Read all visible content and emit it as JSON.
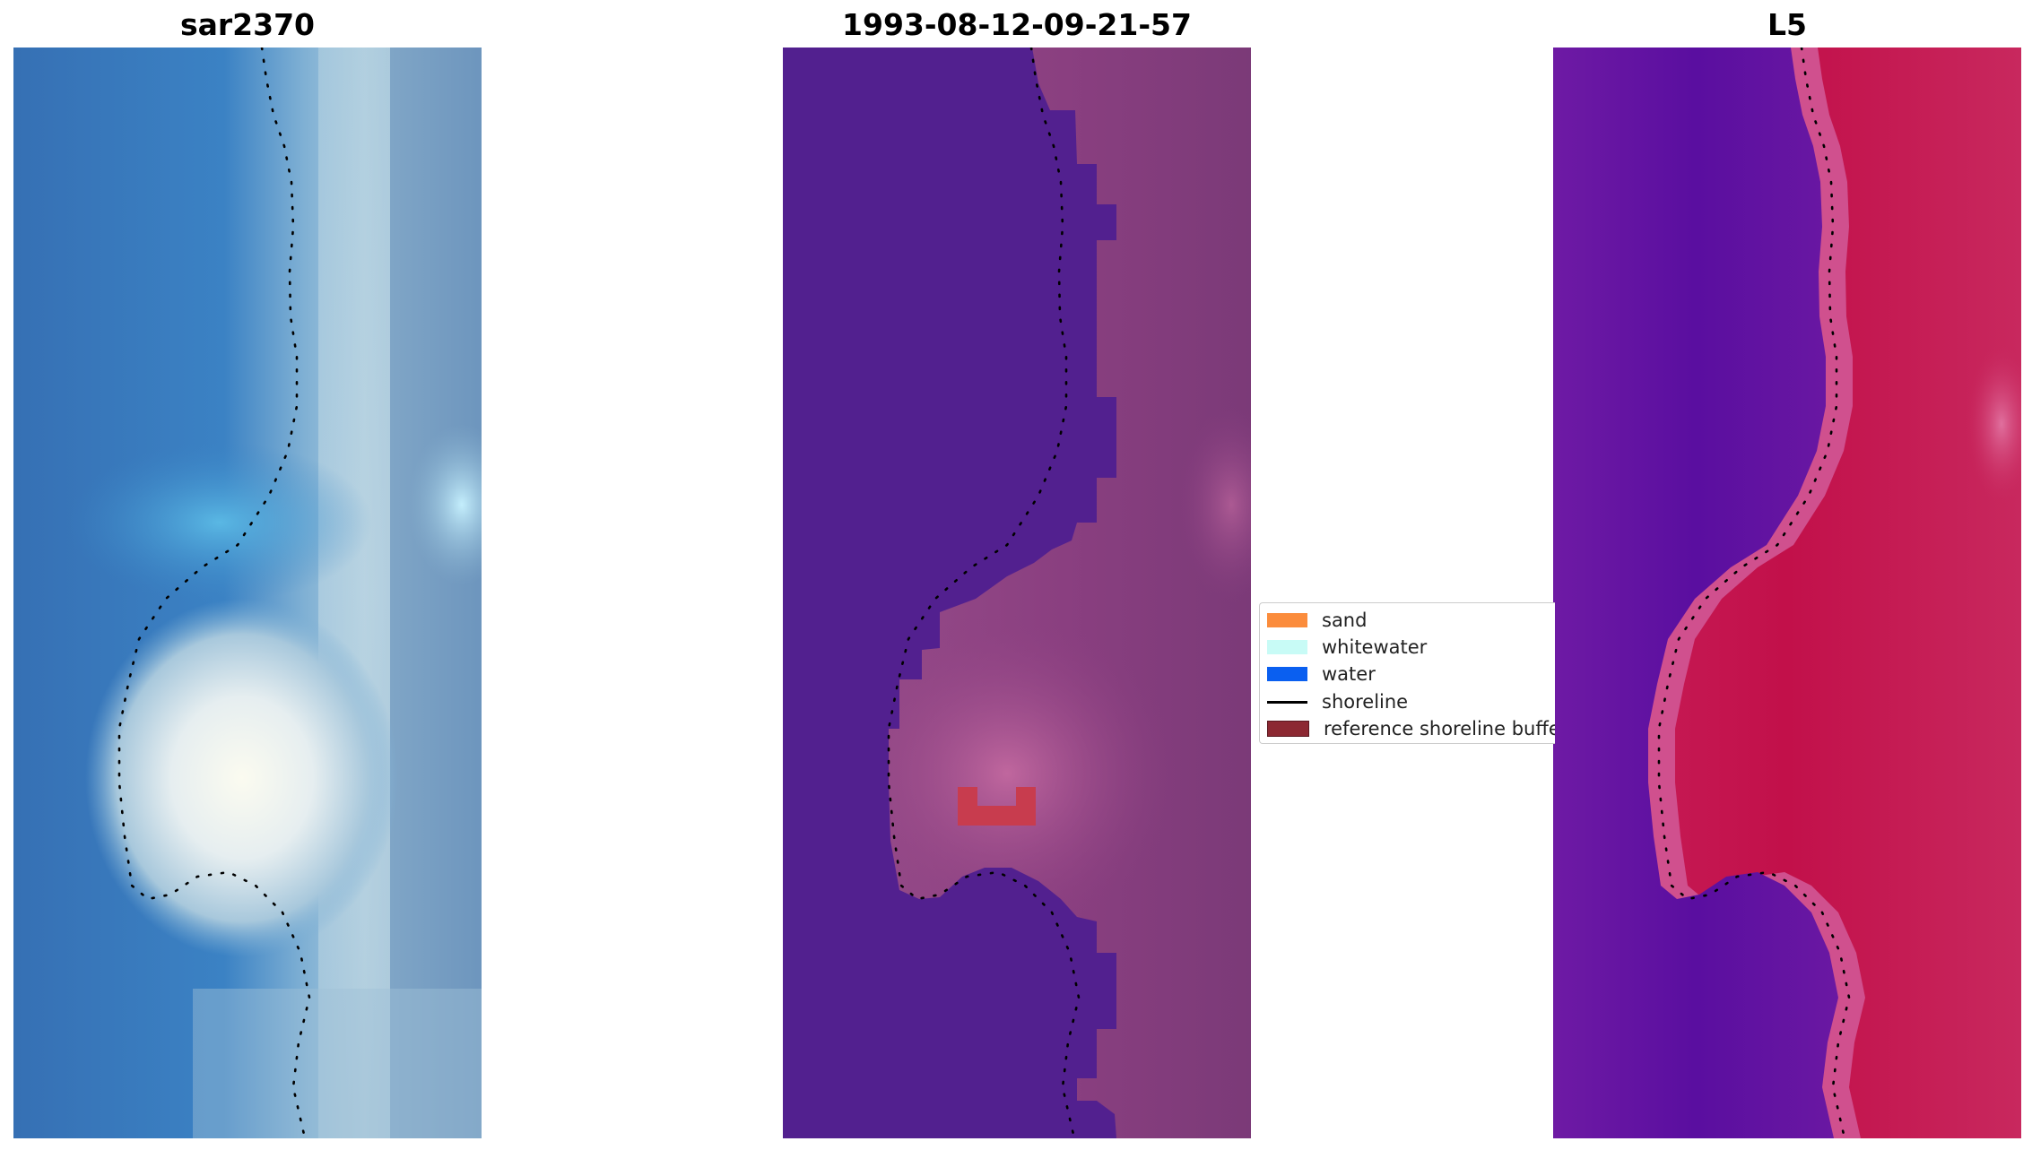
{
  "panels": [
    {
      "title": "sar2370"
    },
    {
      "title": "1993-08-12-09-21-57"
    },
    {
      "title": "L5"
    }
  ],
  "legend": {
    "items": [
      {
        "label": "sand",
        "color": "#fb8c3c",
        "kind": "patch"
      },
      {
        "label": "whitewater",
        "color": "#c8fbf6",
        "kind": "patch"
      },
      {
        "label": "water",
        "color": "#0a5ff0",
        "kind": "patch"
      },
      {
        "label": "shoreline",
        "color": "#000000",
        "kind": "line"
      },
      {
        "label": "reference shoreline buffer",
        "color": "#8c2832",
        "kind": "patch"
      }
    ]
  },
  "colors": {
    "rgb_water": "#3a7bbf",
    "rgb_foam": "#f4f7ef",
    "rgb_land": "#7fa3c4",
    "classified_water": "#52208f",
    "classified_land": "#8a3f80",
    "classified_buffer": "#c83c4e",
    "index_low": "#5a10a0",
    "index_high": "#c0104a",
    "shoreline": "#000000"
  }
}
